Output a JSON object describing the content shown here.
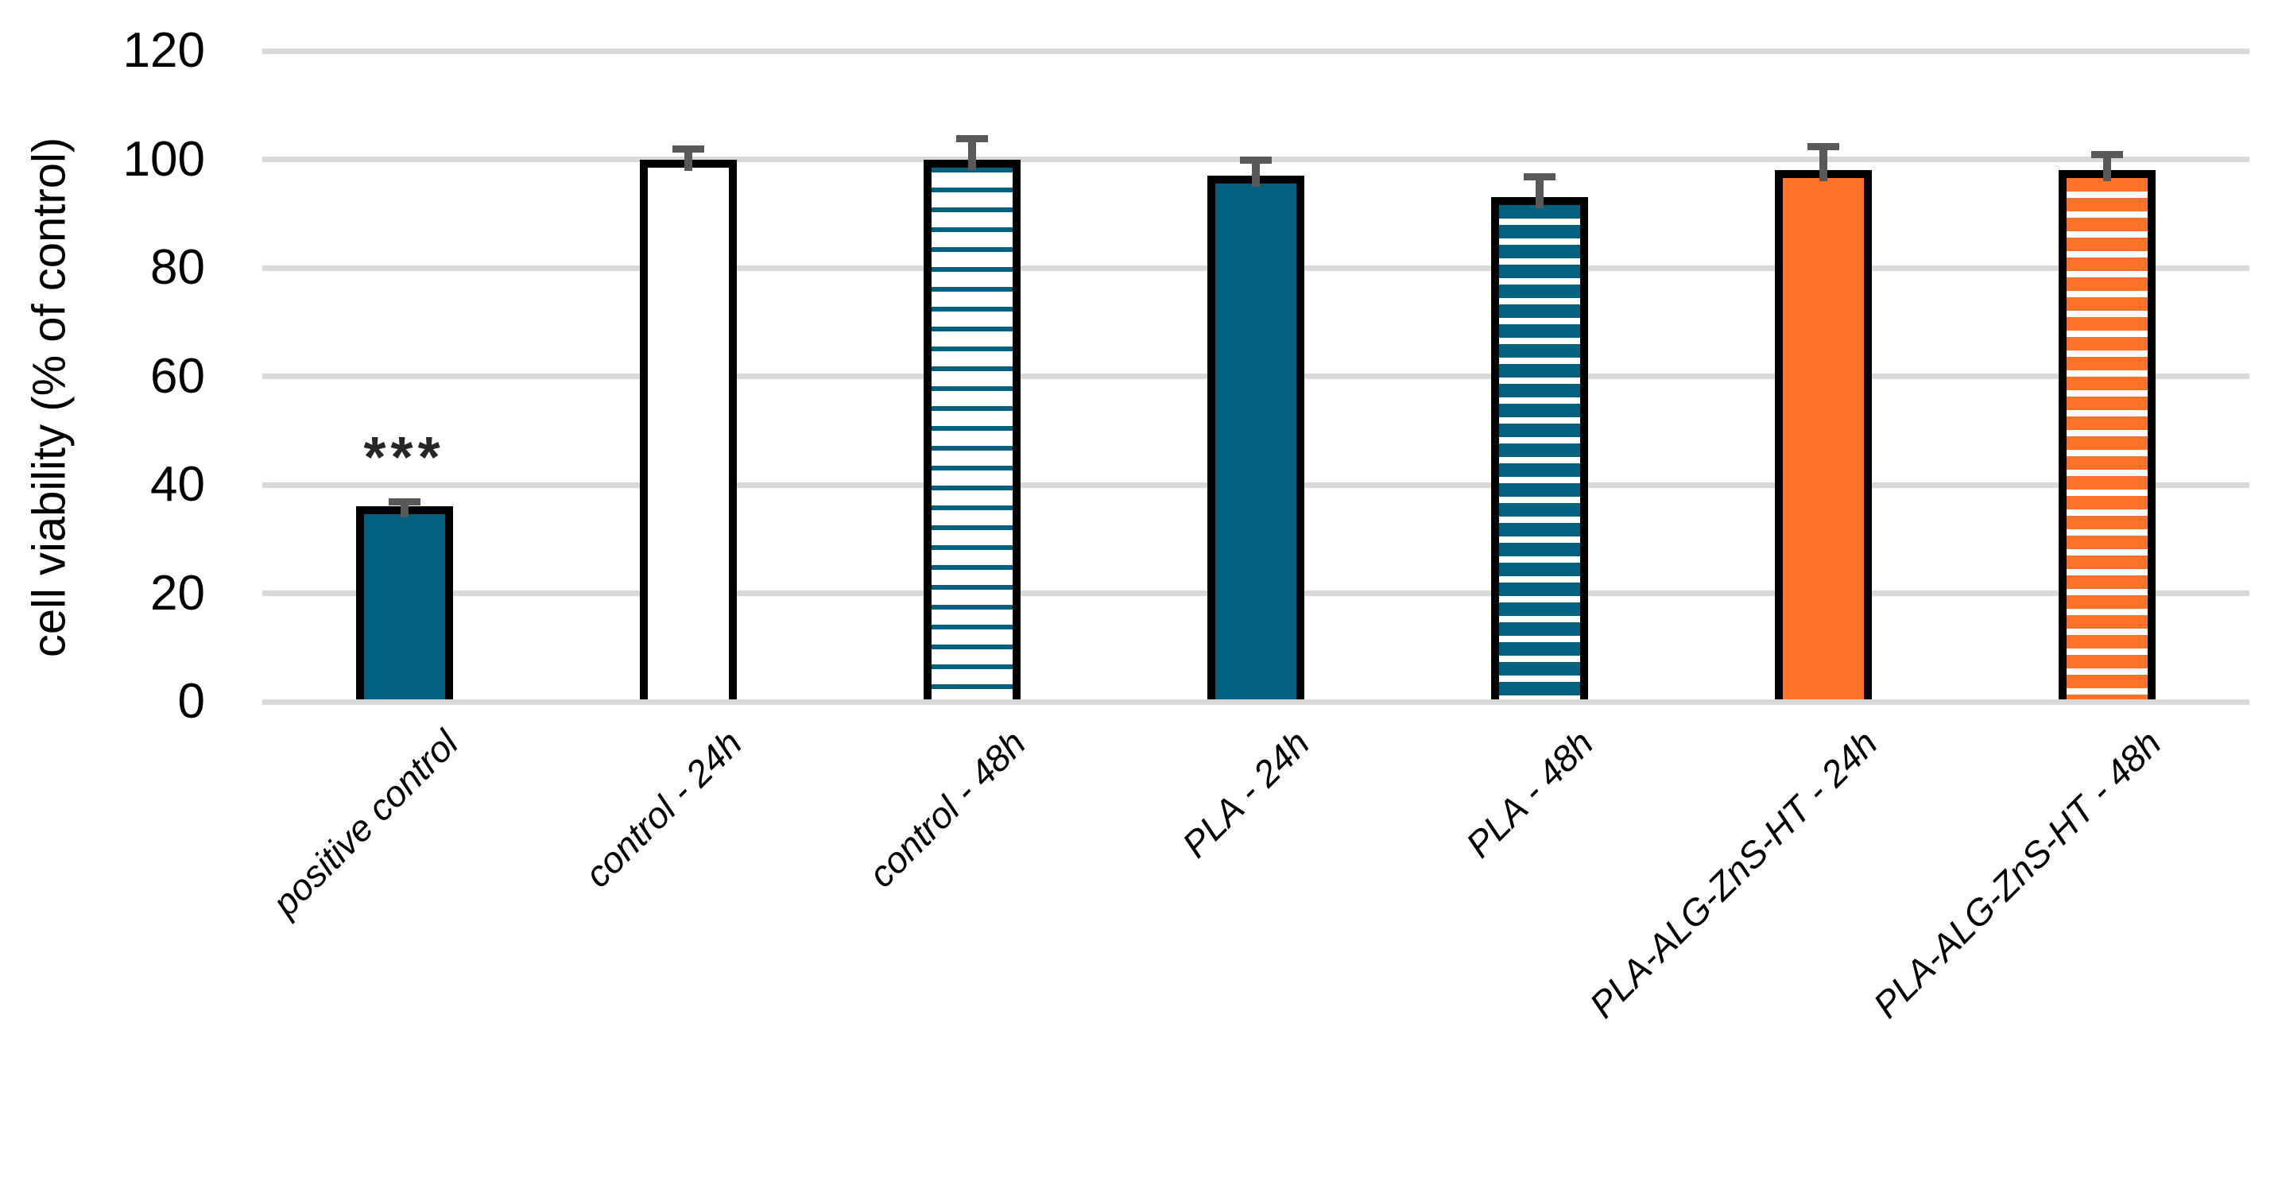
{
  "chart_data": {
    "type": "bar",
    "title": "",
    "xlabel": "",
    "ylabel": "cell viability (% of control)",
    "ylim": [
      0,
      120
    ],
    "yticks": [
      0,
      20,
      40,
      60,
      80,
      100,
      120
    ],
    "grid": true,
    "legend": false,
    "categories": [
      "positive control",
      "control - 24h",
      "control - 48h",
      "PLA - 24h",
      "PLA - 48h",
      "PLA-ALG-ZnS-HT - 24h",
      "PLA-ALG-ZnS-HT - 48h"
    ],
    "values": [
      36,
      100,
      100,
      97,
      93,
      98,
      98
    ],
    "errors": [
      1.5,
      2.5,
      4.5,
      3.5,
      4.5,
      5,
      3.5
    ],
    "annotations": [
      {
        "category_index": 0,
        "text": "***"
      }
    ],
    "bar_styles": [
      {
        "fill": "solid",
        "color": "#02617E"
      },
      {
        "fill": "solid",
        "color": "#FFFFFF"
      },
      {
        "fill": "hstripe-thin",
        "color": "#02617E"
      },
      {
        "fill": "solid",
        "color": "#02617E"
      },
      {
        "fill": "hstripe-thick",
        "color": "#02617E"
      },
      {
        "fill": "solid",
        "color": "#FD7128"
      },
      {
        "fill": "hstripe-thick",
        "color": "#FD7128"
      }
    ],
    "colors": {
      "teal": "#02617E",
      "orange": "#FD7128",
      "gridline": "#D9D9D9",
      "error_bar": "#595959",
      "bar_border": "#000000",
      "significance": "#262626"
    }
  }
}
